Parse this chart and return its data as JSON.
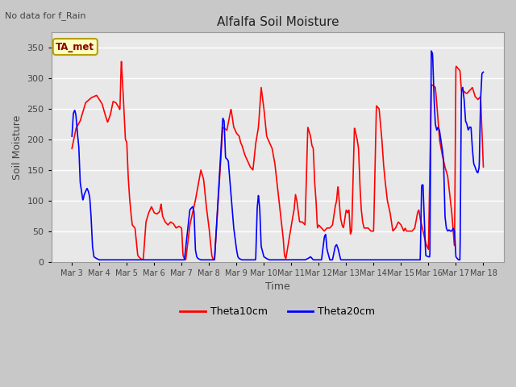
{
  "title": "Alfalfa Soil Moisture",
  "xlabel": "Time",
  "ylabel": "Soil Moisture",
  "note": "No data for f_Rain",
  "legend_label": "TA_met",
  "series": [
    "Theta10cm",
    "Theta20cm"
  ],
  "colors": [
    "red",
    "blue"
  ],
  "ylim": [
    0,
    375
  ],
  "yticks": [
    0,
    50,
    100,
    150,
    200,
    250,
    300,
    350
  ],
  "xtick_labels": [
    "Mar 3",
    "Mar 4",
    "Mar 5",
    "Mar 6",
    "Mar 7",
    "Mar 8",
    "Mar 9",
    "Mar 10",
    "Mar 11",
    "Mar 12",
    "Mar 13",
    "Mar 14",
    "Mar 15",
    "Mar 16",
    "Mar 17",
    "Mar 18"
  ],
  "fig_bg": "#c8c8c8",
  "plot_bg": "#e8e8e8",
  "grid_color": "#ffffff",
  "linewidth": 1.2,
  "red_keypoints": [
    [
      0.0,
      185
    ],
    [
      0.15,
      218
    ],
    [
      0.3,
      230
    ],
    [
      0.5,
      260
    ],
    [
      0.7,
      268
    ],
    [
      0.9,
      272
    ],
    [
      1.0,
      265
    ],
    [
      1.1,
      258
    ],
    [
      1.2,
      242
    ],
    [
      1.3,
      228
    ],
    [
      1.4,
      240
    ],
    [
      1.5,
      262
    ],
    [
      1.6,
      260
    ],
    [
      1.7,
      253
    ],
    [
      1.75,
      248
    ],
    [
      1.8,
      330
    ],
    [
      1.85,
      290
    ],
    [
      1.9,
      245
    ],
    [
      1.95,
      200
    ],
    [
      2.0,
      195
    ],
    [
      2.05,
      140
    ],
    [
      2.1,
      105
    ],
    [
      2.15,
      80
    ],
    [
      2.2,
      60
    ],
    [
      2.3,
      55
    ],
    [
      2.4,
      10
    ],
    [
      2.5,
      5
    ],
    [
      2.6,
      3
    ],
    [
      2.7,
      65
    ],
    [
      2.8,
      80
    ],
    [
      2.9,
      90
    ],
    [
      3.0,
      80
    ],
    [
      3.1,
      78
    ],
    [
      3.2,
      82
    ],
    [
      3.25,
      95
    ],
    [
      3.3,
      75
    ],
    [
      3.4,
      65
    ],
    [
      3.5,
      60
    ],
    [
      3.6,
      65
    ],
    [
      3.7,
      62
    ],
    [
      3.8,
      55
    ],
    [
      3.9,
      58
    ],
    [
      4.0,
      55
    ],
    [
      4.05,
      10
    ],
    [
      4.1,
      5
    ],
    [
      4.15,
      3
    ],
    [
      4.3,
      60
    ],
    [
      4.5,
      100
    ],
    [
      4.7,
      150
    ],
    [
      4.8,
      135
    ],
    [
      4.9,
      90
    ],
    [
      5.0,
      55
    ],
    [
      5.1,
      10
    ],
    [
      5.15,
      3
    ],
    [
      5.2,
      5
    ],
    [
      5.5,
      220
    ],
    [
      5.65,
      215
    ],
    [
      5.8,
      250
    ],
    [
      5.9,
      220
    ],
    [
      6.0,
      210
    ],
    [
      6.1,
      205
    ],
    [
      6.15,
      195
    ],
    [
      6.2,
      190
    ],
    [
      6.3,
      175
    ],
    [
      6.4,
      165
    ],
    [
      6.5,
      155
    ],
    [
      6.6,
      150
    ],
    [
      6.7,
      193
    ],
    [
      6.8,
      220
    ],
    [
      6.85,
      252
    ],
    [
      6.9,
      285
    ],
    [
      7.0,
      250
    ],
    [
      7.1,
      205
    ],
    [
      7.2,
      195
    ],
    [
      7.3,
      185
    ],
    [
      7.4,
      160
    ],
    [
      7.5,
      120
    ],
    [
      7.55,
      100
    ],
    [
      7.6,
      80
    ],
    [
      7.65,
      60
    ],
    [
      7.7,
      40
    ],
    [
      7.75,
      10
    ],
    [
      7.8,
      5
    ],
    [
      8.0,
      60
    ],
    [
      8.1,
      85
    ],
    [
      8.15,
      110
    ],
    [
      8.2,
      100
    ],
    [
      8.3,
      65
    ],
    [
      8.4,
      65
    ],
    [
      8.5,
      60
    ],
    [
      8.6,
      220
    ],
    [
      8.7,
      205
    ],
    [
      8.75,
      190
    ],
    [
      8.8,
      185
    ],
    [
      8.85,
      130
    ],
    [
      8.9,
      100
    ],
    [
      8.95,
      55
    ],
    [
      9.0,
      60
    ],
    [
      9.1,
      55
    ],
    [
      9.2,
      50
    ],
    [
      9.3,
      55
    ],
    [
      9.4,
      55
    ],
    [
      9.5,
      60
    ],
    [
      9.6,
      90
    ],
    [
      9.65,
      100
    ],
    [
      9.7,
      125
    ],
    [
      9.75,
      95
    ],
    [
      9.8,
      70
    ],
    [
      9.85,
      60
    ],
    [
      9.9,
      55
    ],
    [
      10.0,
      85
    ],
    [
      10.05,
      80
    ],
    [
      10.1,
      85
    ],
    [
      10.15,
      45
    ],
    [
      10.2,
      50
    ],
    [
      10.3,
      220
    ],
    [
      10.4,
      200
    ],
    [
      10.45,
      185
    ],
    [
      10.5,
      125
    ],
    [
      10.55,
      85
    ],
    [
      10.6,
      65
    ],
    [
      10.65,
      55
    ],
    [
      10.7,
      55
    ],
    [
      10.8,
      55
    ],
    [
      10.9,
      50
    ],
    [
      11.0,
      50
    ],
    [
      11.1,
      255
    ],
    [
      11.2,
      250
    ],
    [
      11.3,
      200
    ],
    [
      11.35,
      165
    ],
    [
      11.4,
      140
    ],
    [
      11.5,
      100
    ],
    [
      11.55,
      90
    ],
    [
      11.6,
      80
    ],
    [
      11.7,
      50
    ],
    [
      11.8,
      55
    ],
    [
      11.9,
      65
    ],
    [
      12.0,
      60
    ],
    [
      12.05,
      55
    ],
    [
      12.1,
      50
    ],
    [
      12.15,
      55
    ],
    [
      12.2,
      50
    ],
    [
      12.3,
      50
    ],
    [
      12.4,
      50
    ],
    [
      12.5,
      55
    ],
    [
      12.6,
      80
    ],
    [
      12.65,
      85
    ],
    [
      12.7,
      70
    ],
    [
      12.8,
      50
    ],
    [
      12.9,
      30
    ],
    [
      13.0,
      20
    ],
    [
      13.1,
      290
    ],
    [
      13.2,
      287
    ],
    [
      13.25,
      285
    ],
    [
      13.3,
      260
    ],
    [
      13.4,
      200
    ],
    [
      13.5,
      175
    ],
    [
      13.6,
      155
    ],
    [
      13.7,
      140
    ],
    [
      13.75,
      120
    ],
    [
      13.8,
      100
    ],
    [
      13.85,
      80
    ],
    [
      13.9,
      50
    ],
    [
      13.95,
      25
    ],
    [
      14.0,
      320
    ],
    [
      14.1,
      315
    ],
    [
      14.15,
      312
    ],
    [
      14.2,
      280
    ],
    [
      14.25,
      280
    ],
    [
      14.3,
      278
    ],
    [
      14.35,
      276
    ],
    [
      14.4,
      275
    ],
    [
      14.5,
      280
    ],
    [
      14.55,
      282
    ],
    [
      14.6,
      285
    ],
    [
      14.65,
      278
    ],
    [
      14.7,
      270
    ],
    [
      14.75,
      268
    ],
    [
      14.8,
      265
    ],
    [
      14.9,
      270
    ],
    [
      15.0,
      155
    ]
  ],
  "blue_keypoints": [
    [
      0.0,
      205
    ],
    [
      0.05,
      242
    ],
    [
      0.1,
      248
    ],
    [
      0.12,
      245
    ],
    [
      0.15,
      238
    ],
    [
      0.2,
      210
    ],
    [
      0.25,
      188
    ],
    [
      0.3,
      130
    ],
    [
      0.35,
      115
    ],
    [
      0.4,
      100
    ],
    [
      0.45,
      110
    ],
    [
      0.5,
      115
    ],
    [
      0.55,
      120
    ],
    [
      0.6,
      115
    ],
    [
      0.65,
      105
    ],
    [
      0.7,
      72
    ],
    [
      0.75,
      25
    ],
    [
      0.8,
      8
    ],
    [
      0.9,
      5
    ],
    [
      1.0,
      3
    ],
    [
      1.5,
      3
    ],
    [
      2.0,
      3
    ],
    [
      2.3,
      3
    ],
    [
      2.5,
      3
    ],
    [
      2.6,
      3
    ],
    [
      2.8,
      3
    ],
    [
      3.0,
      3
    ],
    [
      3.2,
      3
    ],
    [
      3.4,
      3
    ],
    [
      3.6,
      3
    ],
    [
      3.8,
      3
    ],
    [
      4.0,
      3
    ],
    [
      4.1,
      3
    ],
    [
      4.3,
      85
    ],
    [
      4.4,
      90
    ],
    [
      4.45,
      82
    ],
    [
      4.5,
      20
    ],
    [
      4.55,
      8
    ],
    [
      4.6,
      5
    ],
    [
      4.7,
      3
    ],
    [
      4.8,
      3
    ],
    [
      5.0,
      3
    ],
    [
      5.2,
      3
    ],
    [
      5.5,
      235
    ],
    [
      5.55,
      230
    ],
    [
      5.6,
      170
    ],
    [
      5.65,
      168
    ],
    [
      5.7,
      165
    ],
    [
      5.8,
      110
    ],
    [
      5.9,
      55
    ],
    [
      6.0,
      20
    ],
    [
      6.05,
      8
    ],
    [
      6.1,
      5
    ],
    [
      6.2,
      3
    ],
    [
      6.4,
      3
    ],
    [
      6.6,
      3
    ],
    [
      6.7,
      3
    ],
    [
      6.75,
      85
    ],
    [
      6.8,
      110
    ],
    [
      6.85,
      85
    ],
    [
      6.9,
      25
    ],
    [
      7.0,
      8
    ],
    [
      7.1,
      5
    ],
    [
      7.2,
      3
    ],
    [
      7.3,
      3
    ],
    [
      7.4,
      3
    ],
    [
      7.5,
      3
    ],
    [
      7.6,
      3
    ],
    [
      7.7,
      3
    ],
    [
      7.8,
      3
    ],
    [
      7.9,
      3
    ],
    [
      8.0,
      3
    ],
    [
      8.1,
      3
    ],
    [
      8.2,
      3
    ],
    [
      8.3,
      3
    ],
    [
      8.4,
      3
    ],
    [
      8.5,
      3
    ],
    [
      8.6,
      5
    ],
    [
      8.7,
      8
    ],
    [
      8.8,
      3
    ],
    [
      8.9,
      3
    ],
    [
      9.0,
      3
    ],
    [
      9.1,
      3
    ],
    [
      9.2,
      40
    ],
    [
      9.25,
      45
    ],
    [
      9.3,
      20
    ],
    [
      9.4,
      3
    ],
    [
      9.5,
      3
    ],
    [
      9.6,
      25
    ],
    [
      9.65,
      28
    ],
    [
      9.7,
      22
    ],
    [
      9.8,
      3
    ],
    [
      9.9,
      3
    ],
    [
      10.0,
      3
    ],
    [
      10.1,
      3
    ],
    [
      10.2,
      3
    ],
    [
      10.3,
      3
    ],
    [
      10.4,
      3
    ],
    [
      10.5,
      3
    ],
    [
      10.6,
      3
    ],
    [
      10.7,
      3
    ],
    [
      10.8,
      3
    ],
    [
      10.9,
      3
    ],
    [
      11.0,
      3
    ],
    [
      11.1,
      3
    ],
    [
      11.2,
      3
    ],
    [
      11.3,
      3
    ],
    [
      11.4,
      3
    ],
    [
      11.5,
      3
    ],
    [
      11.6,
      3
    ],
    [
      11.7,
      3
    ],
    [
      11.8,
      3
    ],
    [
      11.9,
      3
    ],
    [
      12.0,
      3
    ],
    [
      12.1,
      3
    ],
    [
      12.2,
      3
    ],
    [
      12.3,
      3
    ],
    [
      12.4,
      3
    ],
    [
      12.5,
      3
    ],
    [
      12.6,
      3
    ],
    [
      12.7,
      3
    ],
    [
      12.75,
      125
    ],
    [
      12.8,
      126
    ],
    [
      12.85,
      65
    ],
    [
      12.9,
      10
    ],
    [
      13.0,
      8
    ],
    [
      13.05,
      8
    ],
    [
      13.1,
      345
    ],
    [
      13.15,
      340
    ],
    [
      13.2,
      270
    ],
    [
      13.25,
      225
    ],
    [
      13.3,
      215
    ],
    [
      13.35,
      220
    ],
    [
      13.4,
      215
    ],
    [
      13.5,
      185
    ],
    [
      13.55,
      165
    ],
    [
      13.6,
      75
    ],
    [
      13.65,
      55
    ],
    [
      13.7,
      50
    ],
    [
      13.75,
      52
    ],
    [
      13.8,
      50
    ],
    [
      13.85,
      50
    ],
    [
      13.9,
      55
    ],
    [
      13.95,
      50
    ],
    [
      14.0,
      8
    ],
    [
      14.05,
      5
    ],
    [
      14.1,
      3
    ],
    [
      14.15,
      3
    ],
    [
      14.2,
      280
    ],
    [
      14.25,
      285
    ],
    [
      14.3,
      265
    ],
    [
      14.35,
      230
    ],
    [
      14.4,
      225
    ],
    [
      14.45,
      215
    ],
    [
      14.5,
      220
    ],
    [
      14.55,
      220
    ],
    [
      14.6,
      185
    ],
    [
      14.65,
      160
    ],
    [
      14.7,
      155
    ],
    [
      14.75,
      148
    ],
    [
      14.8,
      145
    ],
    [
      14.85,
      155
    ],
    [
      14.9,
      265
    ],
    [
      14.95,
      308
    ],
    [
      15.0,
      310
    ]
  ]
}
